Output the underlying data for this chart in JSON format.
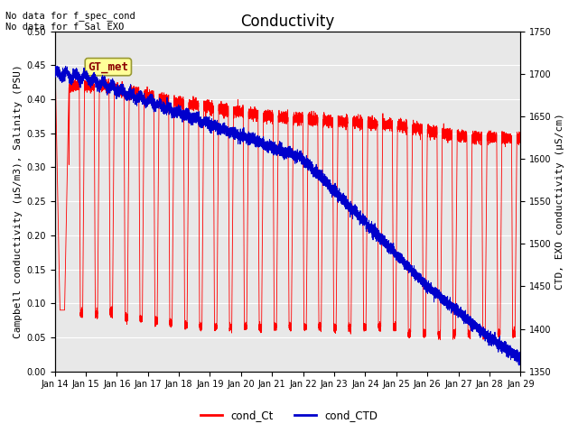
{
  "title": "Conductivity",
  "ylabel_left": "Campbell conductivity (μS/m3), Salinity (PSU)",
  "ylabel_right": "CTD, EXO conductivity (μS/cm)",
  "ylim_left": [
    0.0,
    0.5
  ],
  "ylim_right": [
    1350,
    1750
  ],
  "xlim_days": [
    0,
    15
  ],
  "xtick_labels": [
    "Jan 14",
    "Jan 15",
    "Jan 16",
    "Jan 17",
    "Jan 18",
    "Jan 19",
    "Jan 20",
    "Jan 21",
    "Jan 22",
    "Jan 23",
    "Jan 24",
    "Jan 25",
    "Jan 26",
    "Jan 27",
    "Jan 28",
    "Jan 29"
  ],
  "color_red": "#FF0000",
  "color_blue": "#0000CC",
  "bg_color": "#E0E0E0",
  "plot_bg": "#E8E8E8",
  "annotation_text1": "No data for f_spec_cond",
  "annotation_text2": "No data for f_Sal_EXO",
  "box_label": "GT_met",
  "box_facecolor": "#FFFF99",
  "box_edgecolor": "#999933",
  "legend_labels": [
    "cond_Ct",
    "cond_CTD"
  ],
  "title_fontsize": 12,
  "axis_fontsize": 8,
  "tick_fontsize": 7,
  "annot_fontsize": 7.5
}
